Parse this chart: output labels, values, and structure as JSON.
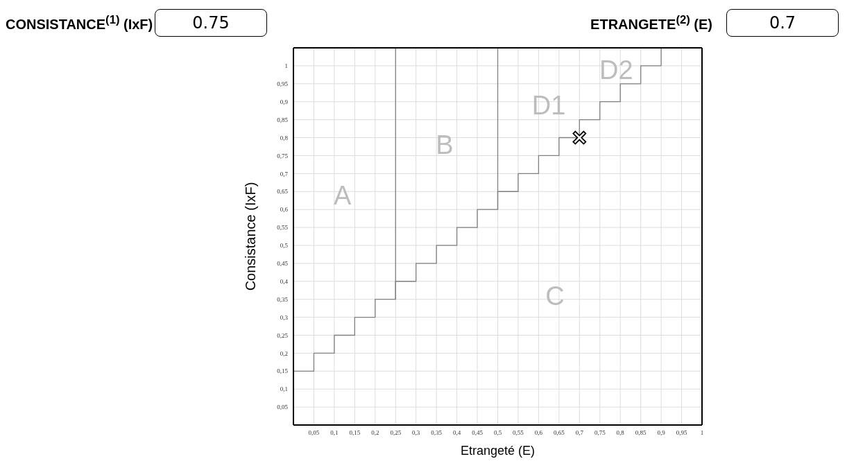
{
  "chart_data": {
    "type": "step",
    "xlabel": "Etrangeté (E)",
    "ylabel": "Consistance (IxF)",
    "annotations": [
      "CONSISTANCE$^{(1)}$ (IxF)",
      "0.75",
      "ETRANGETE$^{(2)}$ (E)",
      "0.7",
      "A",
      "B",
      "C",
      "D1",
      "D2"
    ],
    "xlim": [
      0,
      1
    ],
    "ylim": [
      0,
      1.05
    ],
    "xticks": [
      {
        "value": 0.05,
        "label": "0,05"
      },
      {
        "value": 0.1,
        "label": "0,1"
      },
      {
        "value": 0.15,
        "label": "0,15"
      },
      {
        "value": 0.2,
        "label": "0,2"
      },
      {
        "value": 0.25,
        "label": "0,25"
      },
      {
        "value": 0.3,
        "label": "0,3"
      },
      {
        "value": 0.35,
        "label": "0,35"
      },
      {
        "value": 0.4,
        "label": "0,4"
      },
      {
        "value": 0.45,
        "label": "0,45"
      },
      {
        "value": 0.5,
        "label": "0,5"
      },
      {
        "value": 0.55,
        "label": "0,55"
      },
      {
        "value": 0.6,
        "label": "0,6"
      },
      {
        "value": 0.65,
        "label": "0,65"
      },
      {
        "value": 0.7,
        "label": "0,7"
      },
      {
        "value": 0.75,
        "label": "0,75"
      },
      {
        "value": 0.8,
        "label": "0,8"
      },
      {
        "value": 0.85,
        "label": "0,85"
      },
      {
        "value": 0.9,
        "label": "0,9"
      },
      {
        "value": 0.95,
        "label": "0,95"
      },
      1
    ],
    "yticks": [
      {
        "value": 0.05,
        "label": "0,05"
      },
      {
        "value": 0.1,
        "label": "0,1"
      },
      {
        "value": 0.15,
        "label": "0,15"
      },
      {
        "value": 0.2,
        "label": "0,2"
      },
      {
        "value": 0.25,
        "label": "0,25"
      },
      {
        "value": 0.3,
        "label": "0,3"
      },
      {
        "value": 0.35,
        "label": "0,35"
      },
      {
        "value": 0.4,
        "label": "0,4"
      },
      {
        "value": 0.45,
        "label": "0,45"
      },
      {
        "value": 0.5,
        "label": "0,5"
      },
      {
        "value": 0.55,
        "label": "0,55"
      },
      {
        "value": 0.6,
        "label": "0,6"
      },
      {
        "value": 0.65,
        "label": "0,65"
      },
      {
        "value": 0.7,
        "label": "0,7"
      },
      {
        "value": 0.75,
        "label": "0,75"
      },
      {
        "value": 0.8,
        "label": "0,8"
      },
      {
        "value": 0.85,
        "label": "0,85"
      },
      {
        "value": 0.9,
        "label": "0,9"
      },
      {
        "value": 0.95,
        "label": "0,95"
      },
      1
    ],
    "grid": true,
    "series": [
      {
        "color": "#808080",
        "x": [
          0,
          0.05,
          0.1,
          0.15,
          0.2,
          0.25,
          0.3,
          0.35,
          0.4,
          0.45,
          0.5,
          0.55,
          0.6,
          0.65,
          0.7,
          0.75,
          0.8,
          0.85,
          0.9
        ],
        "values": [
          0.15,
          0.2,
          0.25,
          0.3,
          0.35,
          0.4,
          0.45,
          0.5,
          0.55,
          0.6,
          0.65,
          0.7,
          0.75,
          0.8,
          0.85,
          0.9,
          0.95,
          1,
          1
        ]
      },
      {
        "type": "line",
        "color": "#808080",
        "x": [
          0.25,
          0.25
        ],
        "values": [
          0.35,
          1.05
        ]
      },
      {
        "type": "line",
        "color": "#808080",
        "x": [
          0.5,
          0.5
        ],
        "values": [
          0.6,
          1.05
        ]
      },
      {
        "type": "line",
        "color": "#808080",
        "x": [
          0.9,
          0.9
        ],
        "values": [
          1,
          1.05
        ]
      },
      {
        "type": "scatter",
        "color": "#000000",
        "marker": "cross",
        "x": [
          0.7
        ],
        "values": [
          0.8
        ]
      }
    ]
  }
}
